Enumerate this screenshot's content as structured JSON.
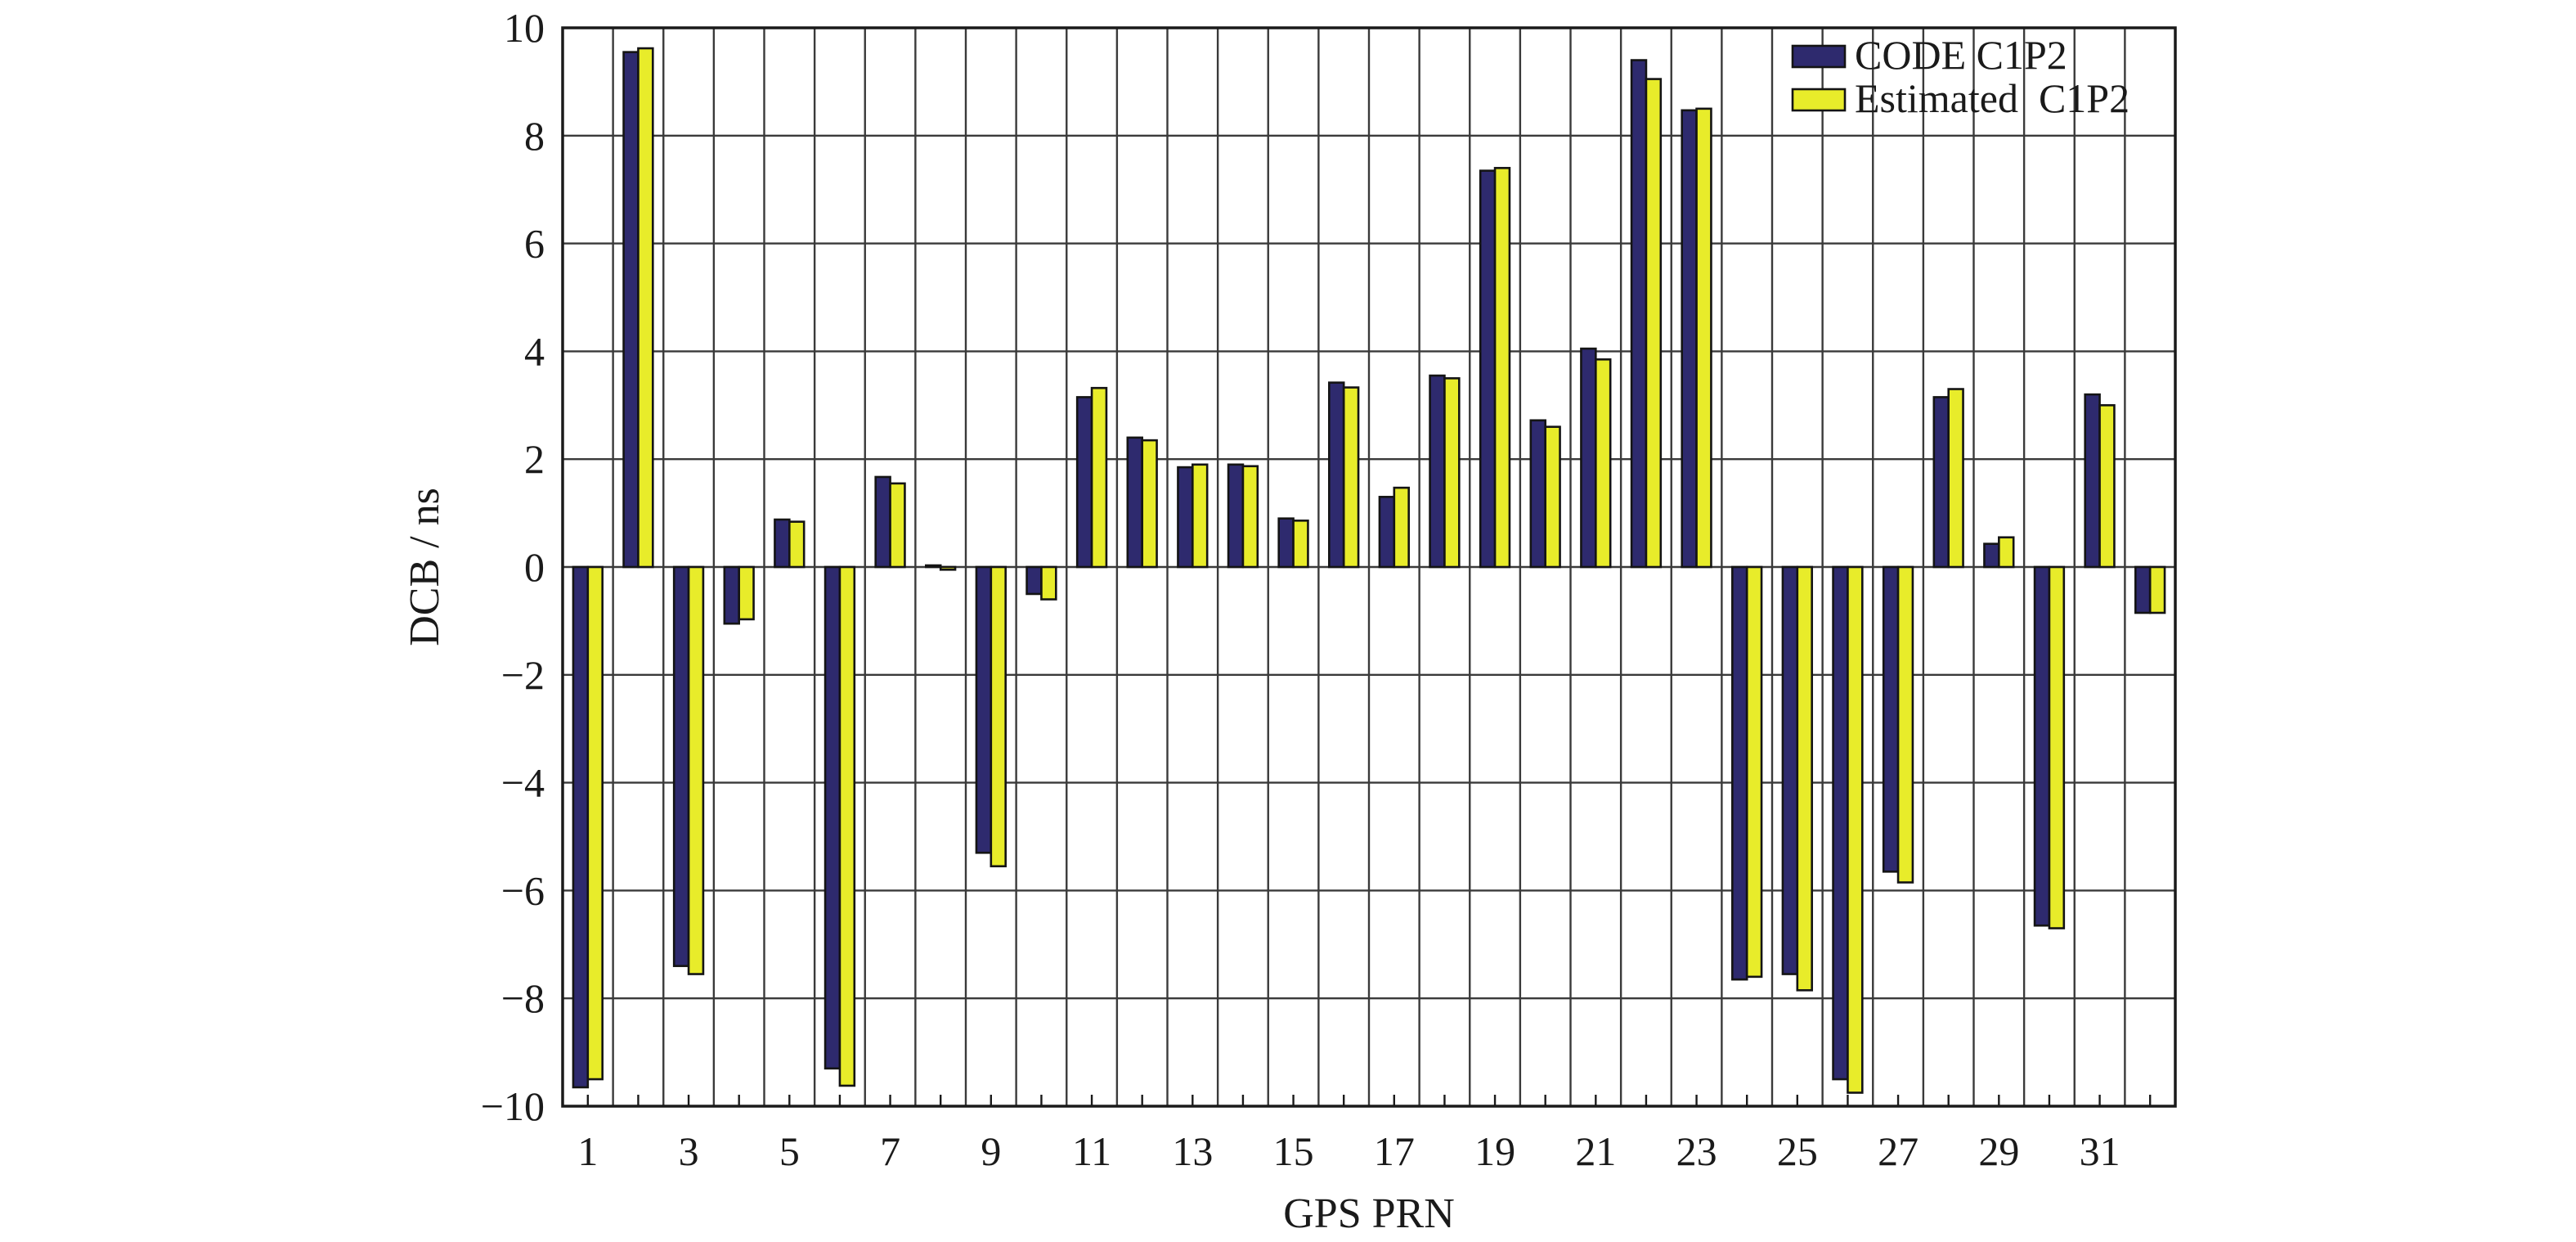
{
  "chart_data": {
    "type": "bar",
    "xlabel": "GPS PRN",
    "ylabel": "DCB / ns",
    "ylim": [
      -10,
      10
    ],
    "yticks": [
      -10,
      -8,
      -6,
      -4,
      -2,
      0,
      2,
      4,
      6,
      8,
      10
    ],
    "ytick_labels": [
      "−10",
      "−8",
      "−6",
      "−4",
      "−2",
      "0",
      "2",
      "4",
      "6",
      "8",
      "10"
    ],
    "categories": [
      1,
      2,
      3,
      4,
      5,
      6,
      7,
      8,
      9,
      10,
      11,
      12,
      13,
      14,
      15,
      16,
      17,
      18,
      19,
      20,
      21,
      22,
      23,
      24,
      25,
      26,
      27,
      28,
      29,
      30,
      31,
      32
    ],
    "xtick_labels": [
      "1",
      "",
      "3",
      "",
      "5",
      "",
      "7",
      "",
      "9",
      "",
      "11",
      "",
      "13",
      "",
      "15",
      "",
      "17",
      "",
      "19",
      "",
      "21",
      "",
      "23",
      "",
      "25",
      "",
      "27",
      "",
      "29",
      "",
      "31",
      ""
    ],
    "grid": true,
    "legend_position": "top-right",
    "series": [
      {
        "name": "CODE C1P2",
        "color": "#2e2a6e",
        "values": [
          -9.65,
          9.55,
          -7.4,
          -1.05,
          0.88,
          -9.3,
          1.67,
          0.03,
          -5.3,
          -0.5,
          3.15,
          2.4,
          1.85,
          1.9,
          0.9,
          3.42,
          1.3,
          3.55,
          7.35,
          2.72,
          4.05,
          9.4,
          8.47,
          -7.65,
          -7.55,
          -9.5,
          -5.65,
          3.15,
          0.43,
          -6.65,
          3.2,
          -0.85
        ]
      },
      {
        "name": "Estimated  C1P2",
        "color": "#e8ec2a",
        "values": [
          -9.5,
          9.62,
          -7.55,
          -0.97,
          0.84,
          -9.62,
          1.55,
          -0.05,
          -5.55,
          -0.6,
          3.32,
          2.35,
          1.9,
          1.87,
          0.86,
          3.33,
          1.47,
          3.5,
          7.4,
          2.6,
          3.85,
          9.05,
          8.5,
          -7.6,
          -7.85,
          -9.75,
          -5.85,
          3.3,
          0.55,
          -6.7,
          3.0,
          -0.85
        ]
      }
    ]
  }
}
